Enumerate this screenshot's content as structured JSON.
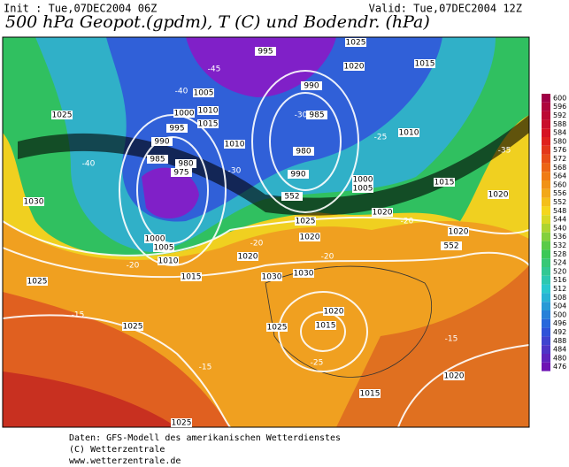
{
  "header": {
    "init": "Init : Tue,07DEC2004 06Z",
    "valid": "Valid: Tue,07DEC2004 12Z",
    "title": "500 hPa Geopot.(gpdm), T (C) und Bodendr. (hPa)"
  },
  "map": {
    "labels": [
      "1025",
      "1030",
      "1025",
      "1010",
      "1005",
      "1000",
      "985",
      "980",
      "975",
      "990",
      "995",
      "1000",
      "1005",
      "1010",
      "1015",
      "1010",
      "995",
      "990",
      "985",
      "980",
      "990",
      "1000",
      "1005",
      "1010",
      "1015",
      "1020",
      "1025",
      "1015",
      "1020",
      "1020",
      "1020",
      "1025",
      "1020",
      "1015",
      "1030",
      "1020",
      "1030",
      "1020",
      "1015",
      "1025",
      "1015",
      "1025",
      "1020",
      "1025",
      "-45",
      "-40",
      "-40",
      "-35",
      "-30",
      "-30",
      "-25",
      "-20",
      "-20",
      "-20",
      "-15",
      "-15",
      "-15",
      "-25",
      "-20",
      "552",
      "552"
    ]
  },
  "colorbar": {
    "ticks": [
      600,
      596,
      592,
      588,
      584,
      580,
      576,
      572,
      568,
      564,
      560,
      556,
      552,
      548,
      544,
      540,
      536,
      532,
      528,
      524,
      520,
      516,
      512,
      508,
      504,
      500,
      496,
      492,
      488,
      484,
      480,
      476
    ]
  },
  "footer": [
    "Daten: GFS-Modell des amerikanischen Wetterdienstes",
    "(C) Wetterzentrale",
    "www.wetterzentrale.de"
  ]
}
